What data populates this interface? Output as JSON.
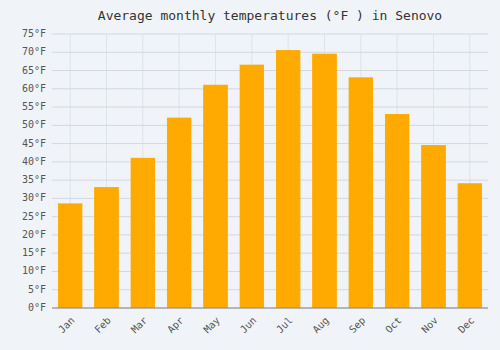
{
  "chart_data": {
    "type": "bar",
    "title": "Average monthly temperatures (°F ) in Senovo",
    "categories": [
      "Jan",
      "Feb",
      "Mar",
      "Apr",
      "May",
      "Jun",
      "Jul",
      "Aug",
      "Sep",
      "Oct",
      "Nov",
      "Dec"
    ],
    "values": [
      28.5,
      33,
      41,
      52,
      61,
      66.5,
      70.5,
      69.5,
      63,
      53,
      44.5,
      34
    ],
    "color": "#FFAA00",
    "ylim": [
      0,
      75
    ],
    "yticks": [
      {
        "value": 0,
        "label": "0°F"
      },
      {
        "value": 5,
        "label": "5°F"
      },
      {
        "value": 10,
        "label": "10°F"
      },
      {
        "value": 15,
        "label": "15°F"
      },
      {
        "value": 20,
        "label": "20°F"
      },
      {
        "value": 25,
        "label": "25°F"
      },
      {
        "value": 30,
        "label": "30°F"
      },
      {
        "value": 35,
        "label": "35°F"
      },
      {
        "value": 40,
        "label": "40°F"
      },
      {
        "value": 45,
        "label": "45°F"
      },
      {
        "value": 50,
        "label": "50°F"
      },
      {
        "value": 55,
        "label": "55°F"
      },
      {
        "value": 60,
        "label": "60°F"
      },
      {
        "value": 65,
        "label": "65°F"
      },
      {
        "value": 70,
        "label": "70°F"
      },
      {
        "value": 75,
        "label": "75°F"
      }
    ],
    "grid": true
  }
}
